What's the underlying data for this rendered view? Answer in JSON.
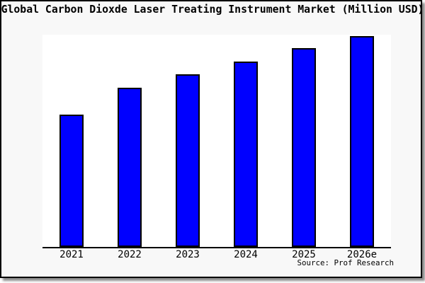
{
  "title": "Global Carbon Dioxde Laser Treating Instrument Market (Million USD)",
  "source_caption": "Source: Prof Research",
  "colors": {
    "frame_background": "#f8f8f8",
    "plot_background": "#ffffff",
    "bar_fill": "#0000ff",
    "bar_border": "#000000",
    "axis": "#000000",
    "text": "#000000"
  },
  "chart_data": {
    "type": "bar",
    "title": "Global Carbon Dioxde Laser Treating Instrument Market (Million USD)",
    "categories": [
      "2021",
      "2022",
      "2023",
      "2024",
      "2025",
      "2026e"
    ],
    "values": [
      62.3,
      74.9,
      81.2,
      87.3,
      93.5,
      99.4
    ],
    "value_note": "y-axis has no tick labels or gridlines; values estimated as percent of plot height",
    "xlabel": "",
    "ylabel": "",
    "ylim": [
      0,
      100
    ],
    "grid": false,
    "legend": "none",
    "annotation": "Source: Prof Research"
  }
}
